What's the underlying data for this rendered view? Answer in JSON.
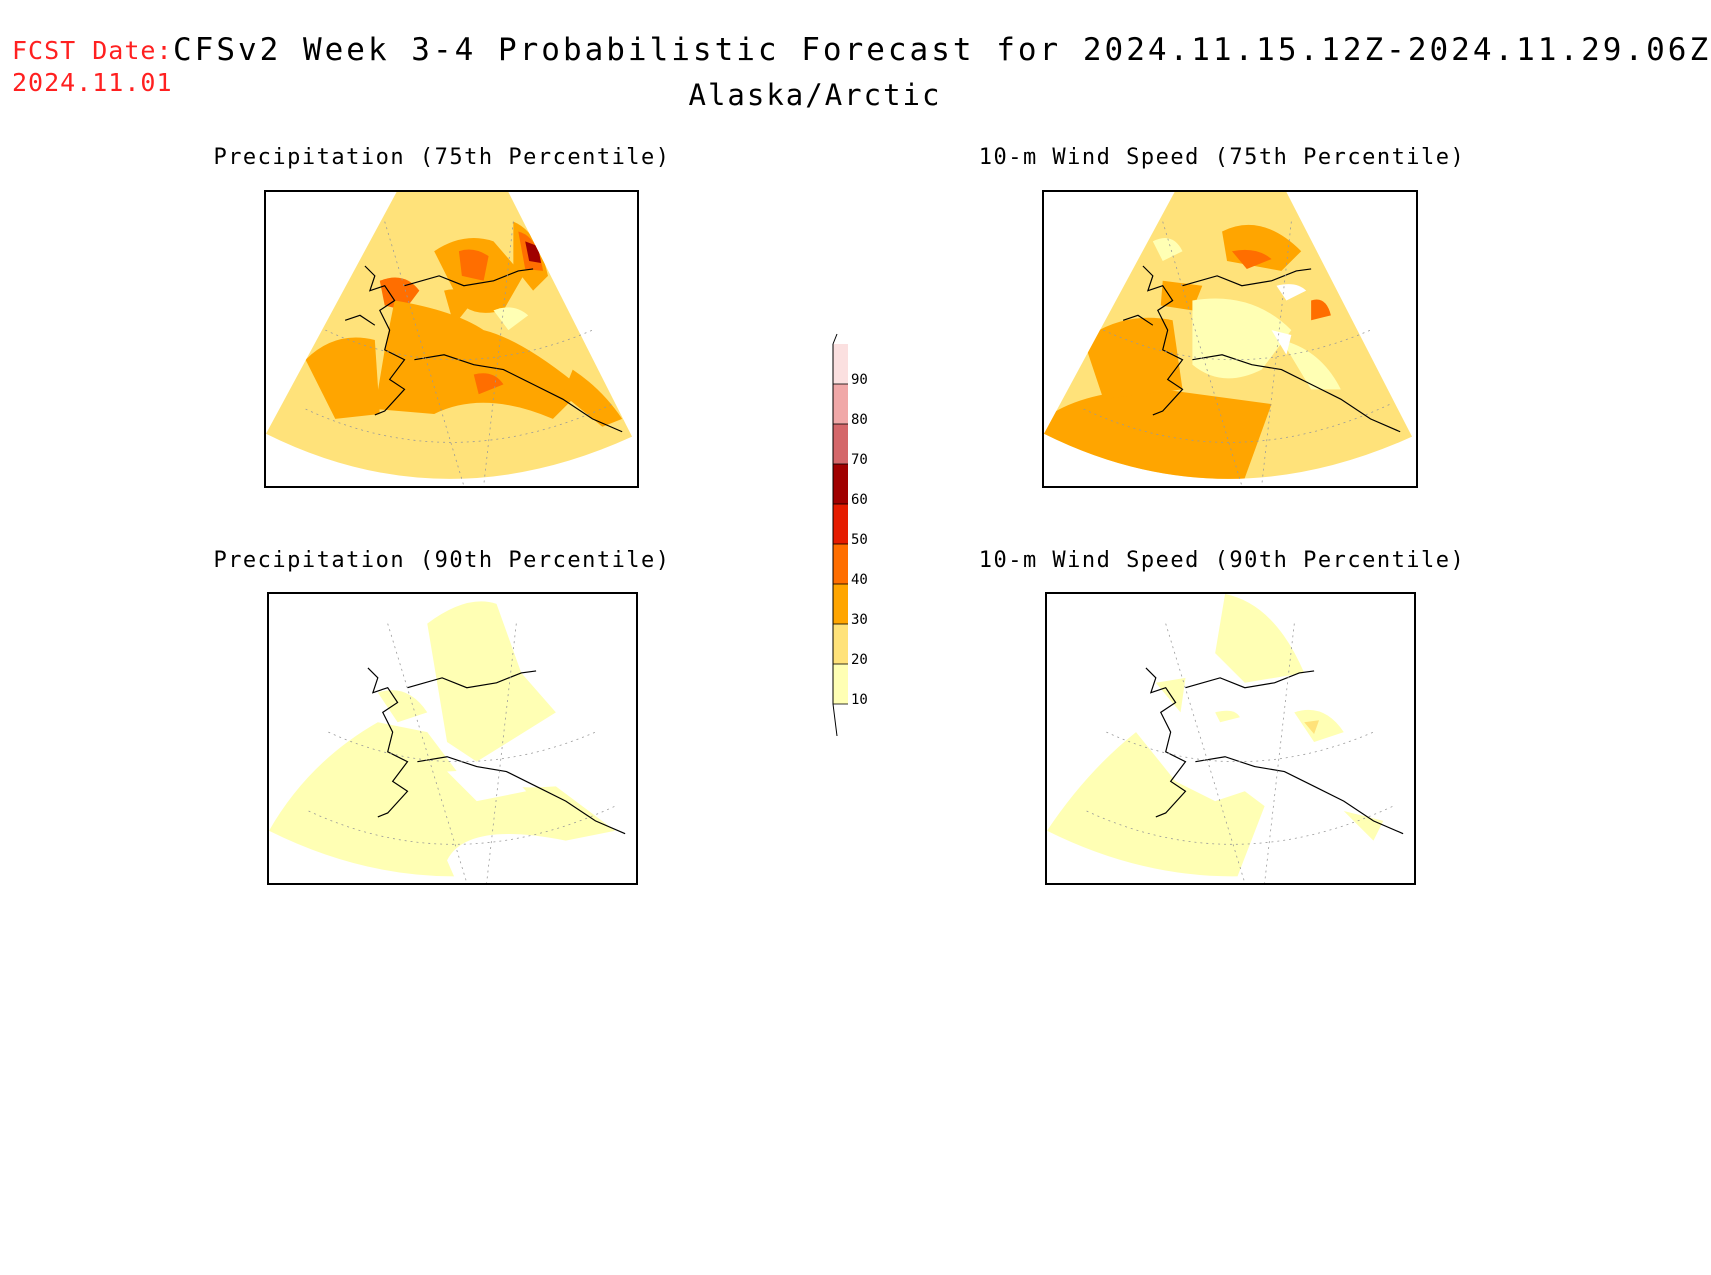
{
  "header": {
    "fcst_label": "FCST Date:",
    "fcst_date": "2024.11.01",
    "title": "CFSv2 Week 3-4 Probabilistic Forecast for 2024.11.15.12Z-2024.11.29.06Z",
    "region": "Alaska/Arctic"
  },
  "panels": [
    {
      "title": "Precipitation (75th Percentile)"
    },
    {
      "title": "10-m Wind Speed (75th Percentile)"
    },
    {
      "title": "Precipitation (90th Percentile)"
    },
    {
      "title": "10-m Wind Speed (90th Percentile)"
    }
  ],
  "colorbar": {
    "levels": [
      "10",
      "20",
      "30",
      "40",
      "50",
      "60",
      "70",
      "80",
      "90"
    ],
    "colors": [
      "#ffffb4",
      "#ffe27a",
      "#ffa500",
      "#ff6e00",
      "#e51c00",
      "#a00000",
      "#d4676a",
      "#f0a8a8",
      "#fbe0e0"
    ]
  },
  "colors": {
    "c10": "#ffffb4",
    "c20": "#ffe27a",
    "c30": "#ffa500",
    "c40": "#ff6e00",
    "c50": "#e51c00",
    "c60": "#a00000",
    "header_red": "#ff2020"
  }
}
